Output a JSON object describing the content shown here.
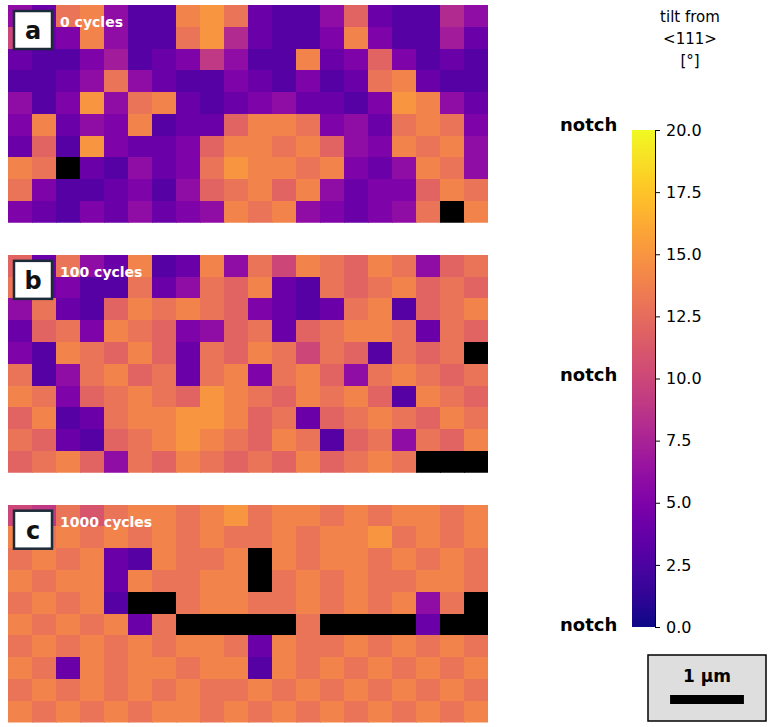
{
  "chart_data": [
    {
      "type": "heatmap",
      "panel": "a",
      "annotation": "0 cycles",
      "side_label": "notch",
      "extent_um": [
        6.5,
        2.95
      ],
      "cells": [
        [
          6,
          4,
          13,
          14,
          6,
          3,
          3,
          14,
          15,
          13,
          4,
          3,
          3,
          6,
          12,
          4,
          3,
          3,
          8,
          6
        ],
        [
          10,
          4,
          5,
          14,
          6,
          3,
          3,
          13,
          15,
          8,
          4,
          3,
          3,
          5,
          14,
          5,
          3,
          3,
          7,
          4
        ],
        [
          4,
          3,
          3,
          5,
          7,
          3,
          4,
          5,
          9,
          6,
          3,
          3,
          14,
          4,
          5,
          12,
          5,
          3,
          4,
          3
        ],
        [
          3,
          3,
          4,
          6,
          13,
          6,
          4,
          3,
          3,
          5,
          4,
          3,
          5,
          3,
          4,
          13,
          14,
          4,
          3,
          3
        ],
        [
          6,
          3,
          5,
          15,
          6,
          13,
          14,
          4,
          3,
          4,
          5,
          6,
          4,
          4,
          3,
          5,
          15,
          14,
          6,
          4
        ],
        [
          5,
          14,
          4,
          6,
          5,
          14,
          3,
          4,
          4,
          12,
          14,
          14,
          13,
          5,
          6,
          4,
          13,
          14,
          13,
          5
        ],
        [
          4,
          12,
          3,
          15,
          5,
          4,
          4,
          5,
          12,
          14,
          14,
          13,
          14,
          12,
          6,
          5,
          14,
          13,
          14,
          6
        ],
        [
          14,
          13,
          null,
          4,
          3,
          6,
          4,
          5,
          13,
          15,
          14,
          14,
          13,
          14,
          5,
          4,
          6,
          14,
          13,
          6
        ],
        [
          13,
          5,
          3,
          3,
          4,
          5,
          3,
          6,
          12,
          13,
          14,
          12,
          14,
          6,
          4,
          5,
          5,
          12,
          14,
          13
        ],
        [
          5,
          4,
          3,
          5,
          4,
          6,
          4,
          5,
          6,
          14,
          13,
          14,
          6,
          5,
          4,
          5,
          6,
          13,
          null,
          14
        ]
      ]
    },
    {
      "type": "heatmap",
      "panel": "b",
      "annotation": "100 cycles",
      "side_label": "notch",
      "extent_um": [
        6.5,
        2.95
      ],
      "cells": [
        [
          12,
          4,
          13,
          6,
          4,
          14,
          3,
          4,
          14,
          6,
          13,
          10,
          14,
          13,
          12,
          14,
          13,
          6,
          12,
          13
        ],
        [
          13,
          4,
          5,
          3,
          3,
          13,
          4,
          6,
          13,
          12,
          14,
          4,
          3,
          13,
          12,
          13,
          14,
          12,
          13,
          12
        ],
        [
          6,
          13,
          4,
          3,
          12,
          14,
          13,
          14,
          13,
          12,
          5,
          4,
          3,
          4,
          13,
          14,
          3,
          12,
          13,
          14
        ],
        [
          4,
          12,
          13,
          5,
          14,
          13,
          12,
          5,
          6,
          12,
          13,
          4,
          12,
          13,
          14,
          14,
          13,
          4,
          13,
          12
        ],
        [
          5,
          3,
          14,
          13,
          12,
          14,
          12,
          4,
          13,
          12,
          14,
          13,
          10,
          13,
          12,
          3,
          13,
          12,
          13,
          null
        ],
        [
          13,
          3,
          6,
          13,
          14,
          12,
          13,
          4,
          13,
          14,
          5,
          13,
          14,
          12,
          6,
          13,
          14,
          13,
          12,
          13
        ],
        [
          14,
          13,
          5,
          12,
          13,
          14,
          13,
          12,
          15,
          14,
          13,
          12,
          14,
          13,
          14,
          12,
          3,
          14,
          13,
          12
        ],
        [
          12,
          14,
          3,
          4,
          13,
          14,
          14,
          15,
          15,
          14,
          12,
          13,
          4,
          12,
          13,
          14,
          13,
          12,
          14,
          13
        ],
        [
          13,
          12,
          4,
          3,
          12,
          13,
          14,
          15,
          14,
          13,
          12,
          14,
          13,
          3,
          12,
          13,
          6,
          13,
          12,
          14
        ],
        [
          12,
          13,
          14,
          12,
          6,
          13,
          12,
          14,
          13,
          12,
          13,
          12,
          14,
          12,
          13,
          14,
          13,
          null,
          null,
          null
        ]
      ]
    },
    {
      "type": "heatmap",
      "panel": "c",
      "annotation": "1000 cycles",
      "side_label": "notch",
      "extent_um": [
        6.5,
        2.95
      ],
      "cells": [
        [
          10,
          9,
          13,
          11,
          13,
          14,
          14,
          13,
          14,
          15,
          13,
          14,
          14,
          13,
          14,
          13,
          14,
          14,
          13,
          14
        ],
        [
          14,
          13,
          14,
          13,
          14,
          13,
          14,
          13,
          14,
          13,
          13,
          14,
          13,
          14,
          14,
          15,
          13,
          14,
          13,
          14
        ],
        [
          13,
          14,
          13,
          14,
          4,
          3,
          14,
          13,
          13,
          14,
          null,
          14,
          13,
          14,
          14,
          13,
          14,
          13,
          14,
          13
        ],
        [
          14,
          13,
          14,
          14,
          4,
          14,
          13,
          13,
          14,
          14,
          null,
          13,
          14,
          13,
          14,
          13,
          13,
          14,
          14,
          13
        ],
        [
          13,
          14,
          13,
          14,
          3,
          null,
          null,
          13,
          14,
          14,
          13,
          13,
          14,
          13,
          14,
          13,
          14,
          6,
          13,
          null
        ],
        [
          14,
          13,
          14,
          13,
          14,
          4,
          13,
          null,
          null,
          null,
          null,
          null,
          13,
          null,
          null,
          null,
          null,
          4,
          null,
          null
        ],
        [
          13,
          14,
          13,
          14,
          13,
          14,
          13,
          14,
          14,
          13,
          4,
          14,
          13,
          13,
          14,
          13,
          14,
          13,
          14,
          13
        ],
        [
          14,
          13,
          4,
          14,
          13,
          14,
          14,
          13,
          14,
          14,
          3,
          14,
          13,
          14,
          13,
          14,
          13,
          14,
          13,
          14
        ],
        [
          13,
          14,
          13,
          14,
          13,
          14,
          13,
          14,
          13,
          13,
          14,
          13,
          14,
          13,
          14,
          13,
          14,
          13,
          14,
          13
        ],
        [
          14,
          13,
          14,
          13,
          14,
          13,
          14,
          14,
          13,
          14,
          13,
          14,
          13,
          14,
          13,
          14,
          13,
          14,
          13,
          14
        ]
      ]
    }
  ],
  "colorbar": {
    "title": [
      "tilt from",
      "<111>",
      "[°]"
    ],
    "range": [
      0,
      20
    ],
    "ticks": [
      {
        "value": 0,
        "label": "0.0"
      },
      {
        "value": 2.5,
        "label": "2.5"
      },
      {
        "value": 5,
        "label": "5.0"
      },
      {
        "value": 7.5,
        "label": "7.5"
      },
      {
        "value": 10,
        "label": "10.0"
      },
      {
        "value": 12.5,
        "label": "12.5"
      },
      {
        "value": 15,
        "label": "15.0"
      },
      {
        "value": 17.5,
        "label": "17.5"
      },
      {
        "value": 20,
        "label": "20.0"
      }
    ]
  },
  "scale_bar": {
    "length": 1,
    "label": "1 µm"
  }
}
